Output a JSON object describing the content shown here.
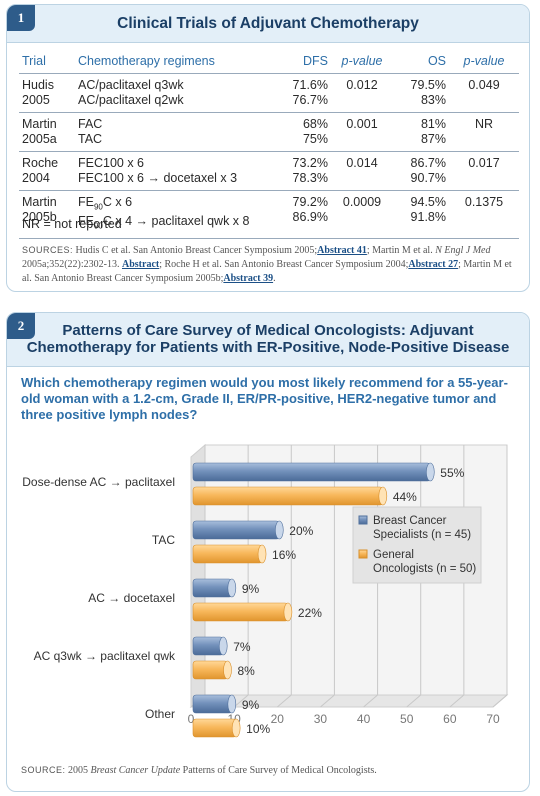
{
  "panel1": {
    "badge": "1",
    "title": "Clinical Trials of Adjuvant Chemotherapy",
    "headers": {
      "trial": "Trial",
      "regimens": "Chemotherapy regimens",
      "dfs": "DFS",
      "p1": "p-value",
      "os": "OS",
      "p2": "p-value"
    },
    "note": "NR = not reported",
    "sources_label": "SOURCES:",
    "sources_parts": {
      "a": " Hudis C et al. San Antonio Breast Cancer Symposium 2005;",
      "abs1": "Abstract 41",
      "b": "; Martin M et al. ",
      "journal": "N Engl J Med",
      "c": " 2005a;352(22):2302-13. ",
      "abs2": "Abstract",
      "d": "; Roche H et al. San Antonio Breast Cancer Symposium 2004;",
      "abs3": "Abstract 27",
      "e": "; Martin M et al. San Antonio Breast Cancer Symposium 2005b;",
      "abs4": "Abstract 39",
      "f": "."
    }
  },
  "trials": [
    {
      "trial": [
        "Hudis",
        "2005"
      ],
      "regimens": [
        "AC/paclitaxel q3wk",
        "AC/paclitaxel q2wk"
      ],
      "dfs": [
        "71.6%",
        "76.7%"
      ],
      "p1": "0.012",
      "os": [
        "79.5%",
        "83%"
      ],
      "p2": "0.049"
    },
    {
      "trial": [
        "Martin",
        "2005a"
      ],
      "regimens": [
        "FAC",
        "TAC"
      ],
      "dfs": [
        "68%",
        "75%"
      ],
      "p1": "0.001",
      "os": [
        "81%",
        "87%"
      ],
      "p2": "NR"
    },
    {
      "trial": [
        "Roche",
        "2004"
      ],
      "regimens": [
        "FEC100 x 6",
        "FEC100 x 6 → docetaxel x 3"
      ],
      "dfs": [
        "73.2%",
        "78.3%"
      ],
      "p1": "0.014",
      "os": [
        "86.7%",
        "90.7%"
      ],
      "p2": "0.017"
    },
    {
      "trial": [
        "Martin",
        "2005b"
      ],
      "regimens": [
        "FE90C x 6",
        "FE90C x 4 → paclitaxel qwk x 8"
      ],
      "dfs": [
        "79.2%",
        "86.9%"
      ],
      "p1": "0.0009",
      "os": [
        "94.5%",
        "91.8%"
      ],
      "p2": "0.1375"
    }
  ],
  "panel2": {
    "badge": "2",
    "title_line1": "Patterns of Care Survey of Medical Oncologists: Adjuvant",
    "title_line2": "Chemotherapy for Patients with ER-Positive, Node-Positive Disease",
    "question": "Which chemotherapy regimen would you most likely recommend for a 55-year-old woman with a 1.2-cm, Grade II, ER/PR-positive, HER2-negative tumor and three positive lymph nodes?",
    "sources_label": "SOURCE:",
    "sources_a": " 2005 ",
    "sources_journal": "Breast Cancer Update",
    "sources_b": " Patterns of Care Survey of Medical Oncologists."
  },
  "chart_data": {
    "type": "bar",
    "orientation": "horizontal",
    "categories": [
      "Dose-dense AC → paclitaxel",
      "TAC",
      "AC → docetaxel",
      "AC q3wk → paclitaxel qwk",
      "Other"
    ],
    "series": [
      {
        "name": "Breast Cancer Specialists (n = 45)",
        "values": [
          55,
          20,
          9,
          7,
          9
        ],
        "labels": [
          "55%",
          "20%",
          "9%",
          "7%",
          "9%"
        ],
        "color": "#6f8fb8"
      },
      {
        "name": "General Oncologists (n = 50)",
        "values": [
          44,
          16,
          22,
          8,
          10
        ],
        "labels": [
          "44%",
          "16%",
          "22%",
          "8%",
          "10%"
        ],
        "color": "#f7b356"
      }
    ],
    "xticks": [
      "0",
      "10",
      "20",
      "30",
      "40",
      "50",
      "60",
      "70"
    ],
    "xlim": [
      0,
      70
    ],
    "grid": true,
    "legend": "right"
  }
}
